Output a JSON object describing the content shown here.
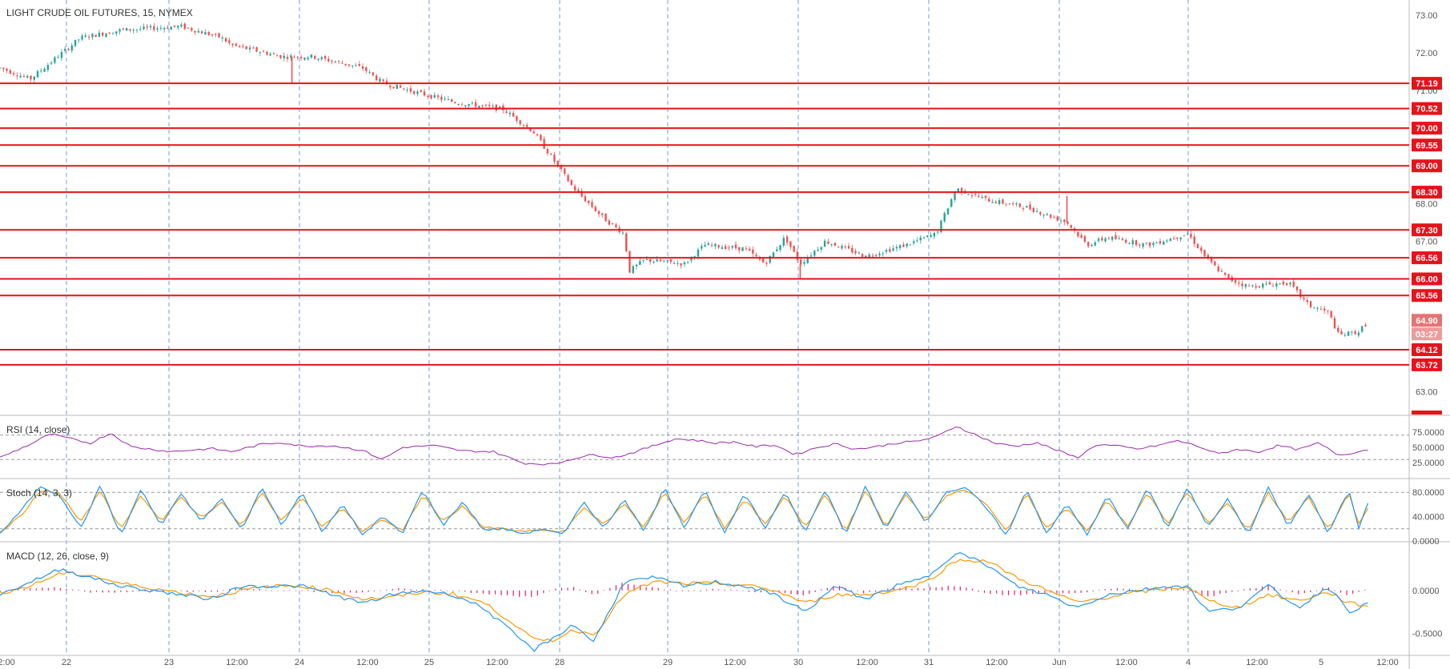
{
  "title": "LIGHT CRUDE OIL FUTURES, 15, NYMEX",
  "colors": {
    "up": "#26a69a",
    "down": "#ef5350",
    "level": "#e8121b",
    "rsi": "#9c27b0",
    "stoch_k": "#2196f3",
    "stoch_d": "#ff9800",
    "macd": "#2196f3",
    "signal": "#ff9800",
    "hist": "#e91e63",
    "grid": "#9598a1",
    "axis_text": "#555555"
  },
  "chart_data": [
    {
      "name": "price",
      "type": "candlestick",
      "ylim": [
        62.4,
        73.4
      ],
      "y_ticks": [
        "73.00",
        "72.00",
        "71.00",
        "68.00",
        "67.00",
        "63.00"
      ],
      "x_ticks": [
        "2:00",
        "22",
        "23",
        "12:00",
        "24",
        "12:00",
        "25",
        "12:00",
        "28",
        "29",
        "12:00",
        "30",
        "12:00",
        "31",
        "12:00",
        "Jun",
        "12:00",
        "4",
        "12:00",
        "5",
        "12:00"
      ],
      "grid_vertical": "dashed at day boundaries",
      "levels": [
        "71.19",
        "70.52",
        "70.00",
        "69.55",
        "69.00",
        "68.30",
        "67.30",
        "66.56",
        "66.00",
        "65.56",
        "64.12",
        "63.72"
      ],
      "last_price": "64.90",
      "countdown": "03:27",
      "path": [
        [
          0,
          71.6
        ],
        [
          3,
          71.3
        ],
        [
          8,
          72.4
        ],
        [
          12,
          72.6
        ],
        [
          18,
          72.7
        ],
        [
          22,
          72.4
        ],
        [
          23,
          72.2
        ],
        [
          28,
          71.9
        ],
        [
          31,
          71.9
        ],
        [
          36,
          71.6
        ],
        [
          38,
          71.2
        ],
        [
          42,
          70.9
        ],
        [
          45,
          70.7
        ],
        [
          50,
          70.5
        ],
        [
          53,
          69.9
        ],
        [
          57,
          68.4
        ],
        [
          60,
          67.6
        ],
        [
          62,
          67.2
        ],
        [
          62.5,
          66.2
        ],
        [
          64,
          66.5
        ],
        [
          68,
          66.4
        ],
        [
          70,
          66.9
        ],
        [
          74,
          66.8
        ],
        [
          76,
          66.4
        ],
        [
          78,
          67.1
        ],
        [
          79.5,
          66.4
        ],
        [
          82,
          67.0
        ],
        [
          86,
          66.6
        ],
        [
          90,
          66.9
        ],
        [
          93,
          67.2
        ],
        [
          95,
          68.4
        ],
        [
          98,
          68.1
        ],
        [
          102,
          67.9
        ],
        [
          106,
          67.5
        ],
        [
          108,
          66.9
        ],
        [
          110,
          67.1
        ],
        [
          114,
          66.9
        ],
        [
          118,
          67.2
        ],
        [
          120,
          66.5
        ],
        [
          122,
          66.0
        ],
        [
          124,
          65.8
        ],
        [
          128,
          65.9
        ],
        [
          130,
          65.3
        ],
        [
          132,
          65.1
        ],
        [
          133,
          64.5
        ],
        [
          135,
          64.6
        ],
        [
          136,
          64.9
        ]
      ],
      "spikes": [
        [
          29,
          71.2
        ],
        [
          79.5,
          66.0
        ],
        [
          106,
          68.2
        ]
      ]
    },
    {
      "name": "RSI",
      "label": "RSI (14, close)",
      "type": "line",
      "ylim": [
        0,
        100
      ],
      "y_ticks": [
        "75.0000",
        "50.0000",
        "25.0000"
      ],
      "bands": [
        70,
        30
      ],
      "path": [
        [
          0,
          33
        ],
        [
          3,
          55
        ],
        [
          5,
          72
        ],
        [
          7,
          64
        ],
        [
          9,
          57
        ],
        [
          11,
          74
        ],
        [
          13,
          51
        ],
        [
          17,
          43
        ],
        [
          21,
          48
        ],
        [
          23,
          43
        ],
        [
          26,
          55
        ],
        [
          28,
          58
        ],
        [
          30,
          52
        ],
        [
          33,
          53
        ],
        [
          36,
          45
        ],
        [
          38,
          30
        ],
        [
          40,
          50
        ],
        [
          43,
          53
        ],
        [
          46,
          44
        ],
        [
          49,
          43
        ],
        [
          52,
          24
        ],
        [
          55,
          22
        ],
        [
          57,
          32
        ],
        [
          59,
          38
        ],
        [
          61,
          33
        ],
        [
          63,
          42
        ],
        [
          65,
          53
        ],
        [
          67,
          64
        ],
        [
          69,
          62
        ],
        [
          71,
          57
        ],
        [
          73,
          59
        ],
        [
          75,
          51
        ],
        [
          77,
          54
        ],
        [
          79,
          38
        ],
        [
          81,
          49
        ],
        [
          83,
          56
        ],
        [
          85,
          47
        ],
        [
          87,
          51
        ],
        [
          89,
          57
        ],
        [
          91,
          60
        ],
        [
          93,
          67
        ],
        [
          95,
          85
        ],
        [
          97,
          70
        ],
        [
          99,
          56
        ],
        [
          101,
          52
        ],
        [
          103,
          58
        ],
        [
          105,
          45
        ],
        [
          107,
          33
        ],
        [
          109,
          55
        ],
        [
          111,
          52
        ],
        [
          113,
          47
        ],
        [
          115,
          53
        ],
        [
          117,
          61
        ],
        [
          119,
          52
        ],
        [
          121,
          39
        ],
        [
          123,
          47
        ],
        [
          125,
          42
        ],
        [
          127,
          53
        ],
        [
          129,
          46
        ],
        [
          131,
          57
        ],
        [
          133,
          37
        ],
        [
          135,
          43
        ],
        [
          136,
          47
        ]
      ]
    },
    {
      "name": "Stoch",
      "label": "Stoch (14, 3, 3)",
      "type": "line",
      "ylim": [
        0,
        100
      ],
      "y_ticks": [
        "80.0000",
        "40.0000",
        "0.0000"
      ],
      "bands": [
        80,
        20
      ],
      "k_path": [
        [
          0,
          12
        ],
        [
          2,
          48
        ],
        [
          4,
          90
        ],
        [
          6,
          75
        ],
        [
          8,
          20
        ],
        [
          10,
          92
        ],
        [
          12,
          8
        ],
        [
          14,
          85
        ],
        [
          16,
          25
        ],
        [
          18,
          78
        ],
        [
          20,
          32
        ],
        [
          22,
          70
        ],
        [
          24,
          18
        ],
        [
          26,
          88
        ],
        [
          28,
          26
        ],
        [
          30,
          80
        ],
        [
          32,
          15
        ],
        [
          34,
          60
        ],
        [
          36,
          10
        ],
        [
          38,
          40
        ],
        [
          40,
          12
        ],
        [
          42,
          85
        ],
        [
          44,
          25
        ],
        [
          46,
          65
        ],
        [
          48,
          18
        ],
        [
          50,
          20
        ],
        [
          52,
          12
        ],
        [
          54,
          20
        ],
        [
          56,
          10
        ],
        [
          58,
          65
        ],
        [
          60,
          20
        ],
        [
          62,
          70
        ],
        [
          64,
          15
        ],
        [
          66,
          88
        ],
        [
          68,
          22
        ],
        [
          70,
          85
        ],
        [
          72,
          12
        ],
        [
          74,
          78
        ],
        [
          76,
          20
        ],
        [
          78,
          82
        ],
        [
          80,
          15
        ],
        [
          82,
          85
        ],
        [
          84,
          10
        ],
        [
          86,
          90
        ],
        [
          88,
          18
        ],
        [
          90,
          82
        ],
        [
          92,
          30
        ],
        [
          94,
          80
        ],
        [
          96,
          90
        ],
        [
          98,
          55
        ],
        [
          100,
          8
        ],
        [
          102,
          85
        ],
        [
          104,
          12
        ],
        [
          106,
          60
        ],
        [
          108,
          10
        ],
        [
          110,
          75
        ],
        [
          112,
          18
        ],
        [
          114,
          88
        ],
        [
          116,
          20
        ],
        [
          118,
          90
        ],
        [
          120,
          22
        ],
        [
          122,
          70
        ],
        [
          124,
          10
        ],
        [
          126,
          88
        ],
        [
          128,
          24
        ],
        [
          130,
          78
        ],
        [
          132,
          12
        ],
        [
          134,
          85
        ],
        [
          135,
          22
        ],
        [
          136,
          66
        ]
      ],
      "d_path": [
        [
          0,
          15
        ],
        [
          2,
          40
        ],
        [
          4,
          82
        ],
        [
          6,
          78
        ],
        [
          8,
          30
        ],
        [
          10,
          84
        ],
        [
          12,
          18
        ],
        [
          14,
          76
        ],
        [
          16,
          32
        ],
        [
          18,
          72
        ],
        [
          20,
          38
        ],
        [
          22,
          64
        ],
        [
          24,
          24
        ],
        [
          26,
          80
        ],
        [
          28,
          32
        ],
        [
          30,
          74
        ],
        [
          32,
          22
        ],
        [
          34,
          54
        ],
        [
          36,
          16
        ],
        [
          38,
          36
        ],
        [
          40,
          16
        ],
        [
          42,
          76
        ],
        [
          44,
          32
        ],
        [
          46,
          58
        ],
        [
          48,
          22
        ],
        [
          50,
          20
        ],
        [
          52,
          15
        ],
        [
          54,
          18
        ],
        [
          56,
          14
        ],
        [
          58,
          56
        ],
        [
          60,
          26
        ],
        [
          62,
          62
        ],
        [
          64,
          22
        ],
        [
          66,
          80
        ],
        [
          68,
          30
        ],
        [
          70,
          78
        ],
        [
          72,
          20
        ],
        [
          74,
          70
        ],
        [
          76,
          26
        ],
        [
          78,
          74
        ],
        [
          80,
          22
        ],
        [
          82,
          78
        ],
        [
          84,
          16
        ],
        [
          86,
          84
        ],
        [
          88,
          24
        ],
        [
          90,
          76
        ],
        [
          92,
          34
        ],
        [
          94,
          74
        ],
        [
          96,
          84
        ],
        [
          98,
          60
        ],
        [
          100,
          16
        ],
        [
          102,
          78
        ],
        [
          104,
          20
        ],
        [
          106,
          54
        ],
        [
          108,
          16
        ],
        [
          110,
          68
        ],
        [
          112,
          24
        ],
        [
          114,
          80
        ],
        [
          116,
          26
        ],
        [
          118,
          82
        ],
        [
          120,
          28
        ],
        [
          122,
          64
        ],
        [
          124,
          16
        ],
        [
          126,
          80
        ],
        [
          128,
          30
        ],
        [
          130,
          72
        ],
        [
          132,
          18
        ],
        [
          134,
          78
        ],
        [
          135,
          28
        ],
        [
          136,
          58
        ]
      ]
    },
    {
      "name": "MACD",
      "label": "MACD (12, 26, close, 9)",
      "type": "line",
      "ylim": [
        -0.75,
        0.55
      ],
      "y_ticks": [
        "0.0000",
        "-0.5000"
      ],
      "macd_path": [
        [
          0,
          -0.05
        ],
        [
          3,
          0.1
        ],
        [
          6,
          0.25
        ],
        [
          9,
          0.15
        ],
        [
          12,
          0.05
        ],
        [
          15,
          0.0
        ],
        [
          18,
          -0.05
        ],
        [
          21,
          -0.1
        ],
        [
          24,
          0.05
        ],
        [
          27,
          0.05
        ],
        [
          30,
          0.05
        ],
        [
          33,
          -0.05
        ],
        [
          36,
          -0.15
        ],
        [
          39,
          -0.05
        ],
        [
          42,
          0.0
        ],
        [
          45,
          -0.05
        ],
        [
          48,
          -0.2
        ],
        [
          51,
          -0.5
        ],
        [
          53,
          -0.7
        ],
        [
          55,
          -0.55
        ],
        [
          57,
          -0.4
        ],
        [
          59,
          -0.6
        ],
        [
          62,
          0.1
        ],
        [
          65,
          0.15
        ],
        [
          68,
          0.05
        ],
        [
          71,
          0.1
        ],
        [
          74,
          0.05
        ],
        [
          77,
          -0.05
        ],
        [
          80,
          -0.25
        ],
        [
          83,
          0.05
        ],
        [
          86,
          -0.1
        ],
        [
          89,
          0.05
        ],
        [
          92,
          0.15
        ],
        [
          95,
          0.45
        ],
        [
          98,
          0.3
        ],
        [
          101,
          0.05
        ],
        [
          104,
          -0.05
        ],
        [
          107,
          -0.2
        ],
        [
          110,
          -0.05
        ],
        [
          113,
          0.0
        ],
        [
          116,
          0.05
        ],
        [
          118,
          0.05
        ],
        [
          120,
          -0.25
        ],
        [
          123,
          -0.2
        ],
        [
          126,
          0.05
        ],
        [
          129,
          -0.2
        ],
        [
          132,
          0.05
        ],
        [
          134,
          -0.25
        ],
        [
          136,
          -0.15
        ]
      ],
      "signal_path": [
        [
          0,
          -0.03
        ],
        [
          3,
          0.05
        ],
        [
          6,
          0.2
        ],
        [
          9,
          0.18
        ],
        [
          12,
          0.08
        ],
        [
          15,
          0.03
        ],
        [
          18,
          -0.03
        ],
        [
          21,
          -0.07
        ],
        [
          24,
          0.0
        ],
        [
          27,
          0.05
        ],
        [
          30,
          0.05
        ],
        [
          33,
          0.0
        ],
        [
          36,
          -0.1
        ],
        [
          39,
          -0.08
        ],
        [
          42,
          -0.02
        ],
        [
          45,
          -0.04
        ],
        [
          48,
          -0.14
        ],
        [
          51,
          -0.38
        ],
        [
          53,
          -0.58
        ],
        [
          55,
          -0.58
        ],
        [
          57,
          -0.46
        ],
        [
          59,
          -0.52
        ],
        [
          62,
          -0.05
        ],
        [
          65,
          0.1
        ],
        [
          68,
          0.08
        ],
        [
          71,
          0.08
        ],
        [
          74,
          0.06
        ],
        [
          77,
          0.0
        ],
        [
          80,
          -0.15
        ],
        [
          83,
          -0.05
        ],
        [
          86,
          -0.05
        ],
        [
          89,
          0.0
        ],
        [
          92,
          0.1
        ],
        [
          95,
          0.35
        ],
        [
          98,
          0.35
        ],
        [
          101,
          0.15
        ],
        [
          104,
          0.0
        ],
        [
          107,
          -0.14
        ],
        [
          110,
          -0.08
        ],
        [
          113,
          -0.02
        ],
        [
          116,
          0.02
        ],
        [
          118,
          0.04
        ],
        [
          120,
          -0.12
        ],
        [
          123,
          -0.2
        ],
        [
          126,
          -0.05
        ],
        [
          129,
          -0.12
        ],
        [
          132,
          -0.02
        ],
        [
          134,
          -0.15
        ],
        [
          136,
          -0.18
        ]
      ]
    }
  ]
}
